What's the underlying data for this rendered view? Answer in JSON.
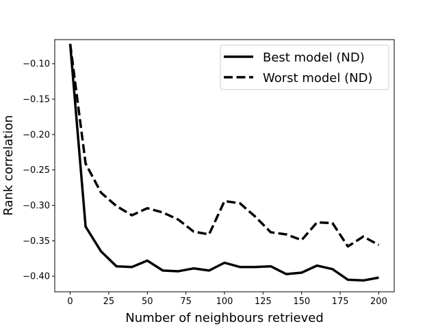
{
  "chart_data": {
    "type": "line",
    "xlabel": "Number of neighbours retrieved",
    "ylabel": "Rank correlation",
    "xlim": [
      -10,
      210
    ],
    "ylim": [
      -0.422,
      -0.066
    ],
    "xticks": [
      0,
      25,
      50,
      75,
      100,
      125,
      150,
      175,
      200
    ],
    "xtick_labels": [
      "0",
      "25",
      "50",
      "75",
      "100",
      "125",
      "150",
      "175",
      "200"
    ],
    "yticks": [
      -0.1,
      -0.15,
      -0.2,
      -0.25,
      -0.3,
      -0.35,
      -0.4
    ],
    "ytick_labels": [
      "−0.10",
      "−0.15",
      "−0.20",
      "−0.25",
      "−0.30",
      "−0.35",
      "−0.40"
    ],
    "grid": false,
    "legend_position": "top-right",
    "x": [
      0,
      10,
      20,
      30,
      40,
      50,
      60,
      70,
      80,
      90,
      100,
      110,
      120,
      130,
      140,
      150,
      160,
      170,
      180,
      190,
      200
    ],
    "series": [
      {
        "name": "Best model (ND)",
        "linestyle": "solid",
        "color": "#000000",
        "values": [
          -0.072,
          -0.33,
          -0.365,
          -0.386,
          -0.387,
          -0.378,
          -0.392,
          -0.393,
          -0.389,
          -0.392,
          -0.381,
          -0.387,
          -0.387,
          -0.386,
          -0.397,
          -0.395,
          -0.385,
          -0.39,
          -0.405,
          -0.406,
          -0.402
        ]
      },
      {
        "name": "Worst model (ND)",
        "linestyle": "dashed",
        "color": "#000000",
        "values": [
          -0.072,
          -0.241,
          -0.282,
          -0.301,
          -0.314,
          -0.304,
          -0.31,
          -0.32,
          -0.337,
          -0.341,
          -0.294,
          -0.297,
          -0.316,
          -0.338,
          -0.341,
          -0.349,
          -0.324,
          -0.325,
          -0.358,
          -0.344,
          -0.356
        ]
      }
    ]
  }
}
